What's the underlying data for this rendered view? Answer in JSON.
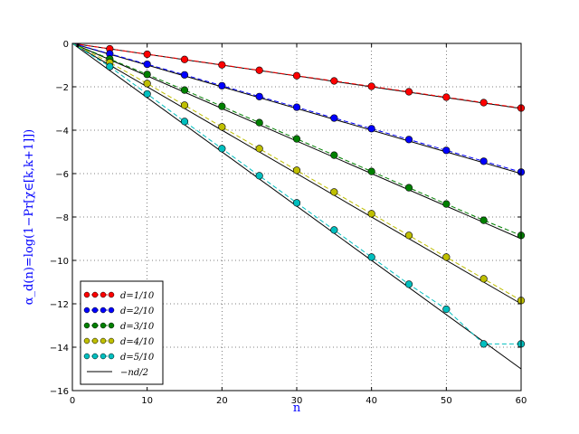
{
  "chart_data": {
    "type": "line",
    "xlabel": "n",
    "ylabel": "α_d(n)=log(1−Pr[χ∈[k,k+1]])",
    "xlim": [
      0,
      60
    ],
    "ylim": [
      -16,
      0
    ],
    "xticks": [
      0,
      10,
      20,
      30,
      40,
      50,
      60
    ],
    "yticks": [
      0,
      -2,
      -4,
      -6,
      -8,
      -10,
      -12,
      -14,
      -16
    ],
    "grid": true,
    "legend_position": "bottom-left",
    "x": [
      5,
      10,
      15,
      20,
      25,
      30,
      35,
      40,
      45,
      50,
      55,
      60
    ],
    "series": [
      {
        "name": "d=1/10",
        "color": "#ff0000",
        "values": [
          -0.25,
          -0.5,
          -0.74,
          -0.99,
          -1.24,
          -1.49,
          -1.73,
          -1.98,
          -2.23,
          -2.48,
          -2.73,
          -2.98
        ]
      },
      {
        "name": "d=2/10",
        "color": "#0000ff",
        "values": [
          -0.48,
          -0.96,
          -1.45,
          -1.95,
          -2.45,
          -2.94,
          -3.44,
          -3.93,
          -4.43,
          -4.93,
          -5.43,
          -5.93
        ]
      },
      {
        "name": "d=3/10",
        "color": "#008000",
        "values": [
          -0.72,
          -1.43,
          -2.15,
          -2.9,
          -3.65,
          -4.4,
          -5.15,
          -5.9,
          -6.65,
          -7.4,
          -8.15,
          -8.85
        ]
      },
      {
        "name": "d=4/10",
        "color": "#bfbf00",
        "values": [
          -0.88,
          -1.85,
          -2.85,
          -3.85,
          -4.85,
          -5.85,
          -6.85,
          -7.85,
          -8.85,
          -9.85,
          -10.85,
          -11.85
        ]
      },
      {
        "name": "d=5/10",
        "color": "#00bfbf",
        "values": [
          -1.07,
          -2.33,
          -3.6,
          -4.85,
          -6.1,
          -7.35,
          -8.6,
          -9.85,
          -11.1,
          -12.25,
          -13.85,
          -13.85
        ]
      }
    ],
    "reference_line": {
      "name": "−nd/2",
      "color": "#000000",
      "slopes": [
        -0.05,
        -0.1,
        -0.15,
        -0.2,
        -0.25
      ]
    }
  }
}
